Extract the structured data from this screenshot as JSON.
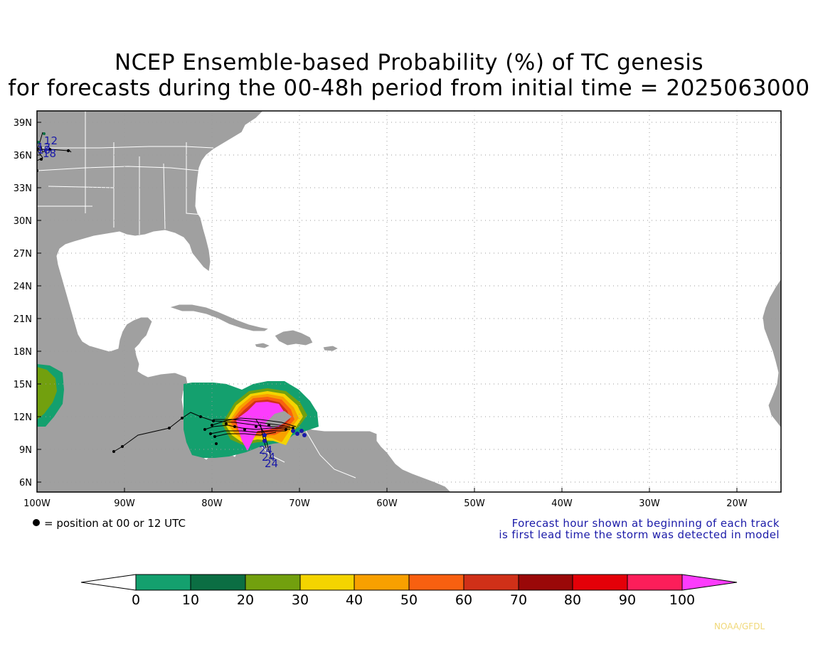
{
  "title": {
    "line1": "NCEP Ensemble-based Probability (%) of TC genesis",
    "line2": "for forecasts during the 00-48h period from initial time = 2025063000"
  },
  "map": {
    "lat_labels": [
      "39N",
      "36N",
      "33N",
      "30N",
      "27N",
      "24N",
      "21N",
      "18N",
      "15N",
      "12N",
      "9N",
      "6N"
    ],
    "lon_labels": [
      "100W",
      "90W",
      "80W",
      "70W",
      "60W",
      "50W",
      "40W",
      "30W",
      "20W"
    ],
    "track_labels": [
      "12",
      "12",
      "18",
      "18",
      "24",
      "24",
      "24"
    ],
    "colors": {
      "land": "#a0a0a0",
      "ocean": "#ffffff",
      "borders": "#ffffff",
      "grid": "#9a9a9a",
      "track": "#000000",
      "track_label": "#1a1aa8"
    }
  },
  "legend": {
    "dot_text": "= position at 00 or 12 UTC",
    "note_line1": "Forecast hour shown at beginning of each track",
    "note_line2": "is first lead time the storm was detected in model"
  },
  "colorbar": {
    "ticks": [
      "0",
      "10",
      "20",
      "30",
      "40",
      "50",
      "60",
      "70",
      "80",
      "90",
      "100"
    ],
    "colors": [
      "#14a06e",
      "#0b6e43",
      "#72a00e",
      "#f4d400",
      "#f8a000",
      "#f86010",
      "#d03018",
      "#9a0808",
      "#e40008",
      "#fc1e5a"
    ],
    "under_color": "#ffffff",
    "over_color": "#fc3cfc"
  },
  "credit": "NOAA/GFDL"
}
